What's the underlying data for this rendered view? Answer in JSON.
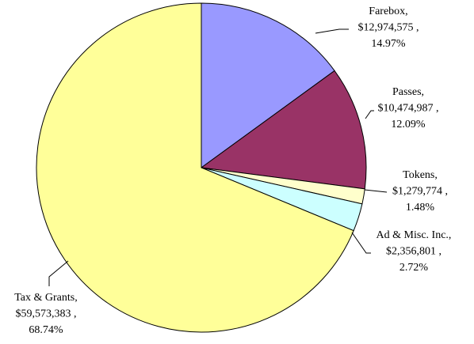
{
  "chart_data": {
    "type": "pie",
    "categories": [
      "Farebox,",
      "Passes,",
      "Tokens,",
      "Ad & Misc. Inc.,",
      "Tax & Grants,"
    ],
    "values": [
      12974575,
      10474987,
      1279774,
      2356801,
      59573383
    ],
    "value_labels": [
      "$12,974,575 ,",
      "$10,474,987 ,",
      "$1,279,774 ,",
      "$2,356,801 ,",
      "$59,573,383 ,"
    ],
    "percent_labels": [
      "14.97%",
      "12.09%",
      "1.48%",
      "2.72%",
      "68.74%"
    ],
    "colors": [
      "#9999ff",
      "#993366",
      "#ffffcc",
      "#ccffff",
      "#ffff99"
    ]
  }
}
